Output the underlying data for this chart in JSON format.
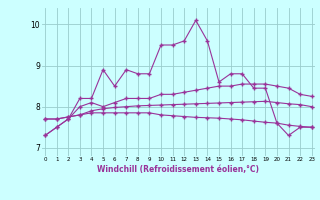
{
  "x": [
    0,
    1,
    2,
    3,
    4,
    5,
    6,
    7,
    8,
    9,
    10,
    11,
    12,
    13,
    14,
    15,
    16,
    17,
    18,
    19,
    20,
    21,
    22,
    23
  ],
  "line1": [
    7.3,
    7.5,
    7.7,
    8.2,
    8.2,
    8.9,
    8.5,
    8.9,
    8.8,
    8.8,
    9.5,
    9.5,
    9.6,
    10.1,
    9.6,
    8.6,
    8.8,
    8.8,
    8.45,
    8.45,
    7.6,
    7.3,
    7.5,
    7.5
  ],
  "line2": [
    7.3,
    7.5,
    7.7,
    8.0,
    8.1,
    8.0,
    8.1,
    8.2,
    8.2,
    8.2,
    8.3,
    8.3,
    8.35,
    8.4,
    8.45,
    8.5,
    8.5,
    8.55,
    8.55,
    8.55,
    8.5,
    8.45,
    8.3,
    8.25
  ],
  "line3": [
    7.7,
    7.7,
    7.75,
    7.8,
    7.85,
    7.85,
    7.85,
    7.85,
    7.85,
    7.85,
    7.8,
    7.78,
    7.76,
    7.74,
    7.73,
    7.72,
    7.7,
    7.68,
    7.65,
    7.62,
    7.6,
    7.55,
    7.52,
    7.5
  ],
  "line4": [
    7.7,
    7.7,
    7.75,
    7.8,
    7.9,
    7.95,
    7.98,
    8.0,
    8.02,
    8.03,
    8.04,
    8.05,
    8.06,
    8.07,
    8.08,
    8.09,
    8.1,
    8.11,
    8.12,
    8.13,
    8.1,
    8.07,
    8.05,
    8.0
  ],
  "color": "#993399",
  "bg_color": "#ccffff",
  "grid_color": "#99cccc",
  "ylabel_values": [
    7,
    8,
    9,
    10
  ],
  "xlabel_ticks": [
    0,
    1,
    2,
    3,
    4,
    5,
    6,
    7,
    8,
    9,
    10,
    11,
    12,
    13,
    14,
    15,
    16,
    17,
    18,
    19,
    20,
    21,
    22,
    23
  ],
  "xlabel_label": "Windchill (Refroidissement éolien,°C)",
  "ylim": [
    6.8,
    10.4
  ],
  "xlim": [
    -0.3,
    23.3
  ],
  "figsize": [
    3.2,
    2.0
  ],
  "dpi": 100
}
